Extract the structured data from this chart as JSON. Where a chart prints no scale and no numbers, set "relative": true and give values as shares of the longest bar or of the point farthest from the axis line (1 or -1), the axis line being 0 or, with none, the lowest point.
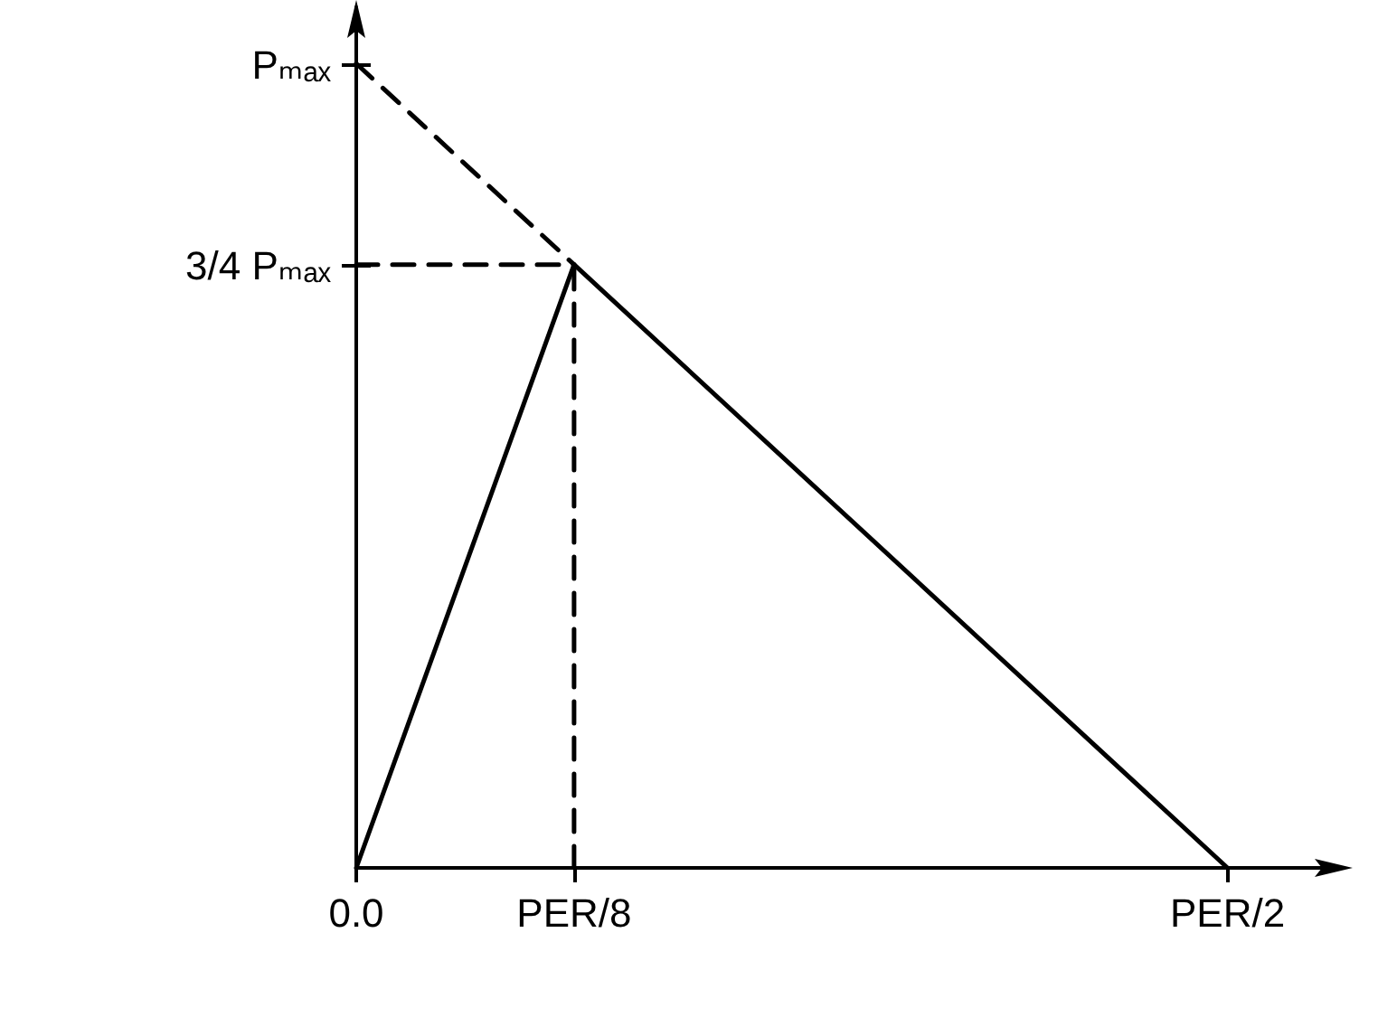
{
  "chart_data": {
    "type": "line",
    "relative": true,
    "categories": [
      "0.0",
      "PER/8",
      null,
      null,
      "PER/2"
    ],
    "grid": false,
    "marker": "none",
    "annotations": [
      "3/4 Pₘₐₓ",
      "Pₘₐₓ"
    ],
    "series": [
      {
        "color": "#000000",
        "x": [
          "0.0",
          "PER/8",
          "PER/2"
        ],
        "values": [
          0,
          0.75,
          0
        ],
        "line_style": "solid"
      },
      {
        "color": "#000000",
        "x": [
          "0.0",
          "PER/8"
        ],
        "values": [
          1,
          0.75
        ],
        "line_style": "dashed"
      },
      {
        "color": "#000000",
        "x": [
          "PER/8",
          "PER/8"
        ],
        "values": [
          0,
          0.75
        ],
        "line_style": "dashed"
      },
      {
        "color": "#000000",
        "x": [
          "0.0",
          "PER/8"
        ],
        "values": [
          0.75,
          0.75
        ],
        "line_style": "dashed"
      }
    ]
  }
}
